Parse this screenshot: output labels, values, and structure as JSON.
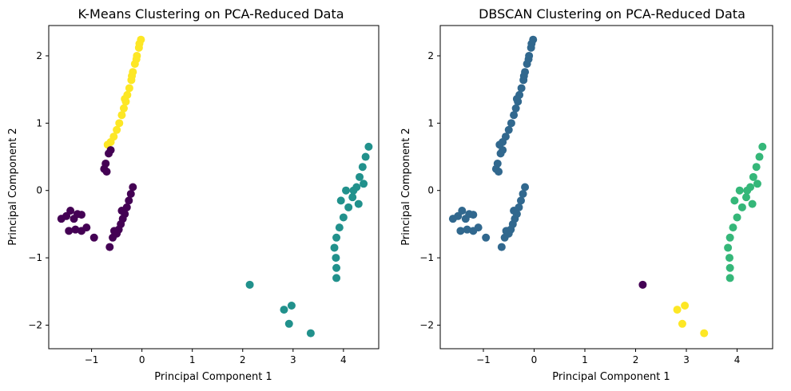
{
  "chart_data": [
    {
      "type": "scatter",
      "title": "K-Means Clustering on PCA-Reduced Data",
      "xlabel": "Principal Component 1",
      "ylabel": "Principal Component 2",
      "xlim": [
        -1.85,
        4.7
      ],
      "ylim": [
        -2.35,
        2.45
      ],
      "xticks": [
        {
          "v": -1,
          "l": "−1"
        },
        {
          "v": 0,
          "l": "0"
        },
        {
          "v": 1,
          "l": "1"
        },
        {
          "v": 2,
          "l": "2"
        },
        {
          "v": 3,
          "l": "3"
        },
        {
          "v": 4,
          "l": "4"
        }
      ],
      "yticks": [
        {
          "v": -2,
          "l": "−2"
        },
        {
          "v": -1,
          "l": "−1"
        },
        {
          "v": 0,
          "l": "0"
        },
        {
          "v": 1,
          "l": "1"
        },
        {
          "v": 2,
          "l": "2"
        }
      ],
      "grid": false,
      "series": [
        {
          "color": "#fde725",
          "points": [
            [
              -0.02,
              2.24
            ],
            [
              -0.06,
              2.12
            ],
            [
              -0.1,
              2.0
            ],
            [
              -0.14,
              1.88
            ],
            [
              -0.18,
              1.76
            ],
            [
              -0.21,
              1.64
            ],
            [
              -0.25,
              1.52
            ],
            [
              -0.29,
              1.42
            ],
            [
              -0.32,
              1.32
            ],
            [
              -0.36,
              1.22
            ],
            [
              -0.4,
              1.12
            ],
            [
              -0.45,
              1.0
            ],
            [
              -0.5,
              0.9
            ],
            [
              -0.56,
              0.8
            ],
            [
              -0.62,
              0.72
            ],
            [
              -0.68,
              0.68
            ],
            [
              -0.05,
              2.18
            ],
            [
              -0.11,
              1.95
            ],
            [
              -0.2,
              1.7
            ],
            [
              -0.34,
              1.36
            ]
          ]
        },
        {
          "color": "#440154",
          "points": [
            [
              -0.62,
              0.6
            ],
            [
              -0.66,
              0.55
            ],
            [
              -0.72,
              0.4
            ],
            [
              -0.75,
              0.32
            ],
            [
              -0.7,
              0.28
            ],
            [
              -0.18,
              0.05
            ],
            [
              -0.22,
              -0.05
            ],
            [
              -0.26,
              -0.15
            ],
            [
              -0.3,
              -0.25
            ],
            [
              -0.34,
              -0.35
            ],
            [
              -0.38,
              -0.42
            ],
            [
              -0.42,
              -0.5
            ],
            [
              -0.46,
              -0.58
            ],
            [
              -0.5,
              -0.64
            ],
            [
              -0.55,
              -0.6
            ],
            [
              -0.58,
              -0.7
            ],
            [
              -0.64,
              -0.84
            ],
            [
              -0.4,
              -0.3
            ],
            [
              -1.6,
              -0.42
            ],
            [
              -1.5,
              -0.38
            ],
            [
              -1.42,
              -0.3
            ],
            [
              -1.35,
              -0.42
            ],
            [
              -1.28,
              -0.35
            ],
            [
              -1.2,
              -0.36
            ],
            [
              -1.45,
              -0.6
            ],
            [
              -1.32,
              -0.58
            ],
            [
              -1.2,
              -0.6
            ],
            [
              -1.1,
              -0.55
            ],
            [
              -0.95,
              -0.7
            ]
          ]
        },
        {
          "color": "#21918c",
          "points": [
            [
              4.5,
              0.65
            ],
            [
              4.44,
              0.5
            ],
            [
              4.38,
              0.35
            ],
            [
              4.32,
              0.2
            ],
            [
              4.26,
              0.05
            ],
            [
              4.18,
              -0.1
            ],
            [
              4.1,
              -0.25
            ],
            [
              4.0,
              -0.4
            ],
            [
              3.92,
              -0.55
            ],
            [
              3.86,
              -0.7
            ],
            [
              3.82,
              -0.85
            ],
            [
              3.85,
              -1.0
            ],
            [
              3.86,
              -1.15
            ],
            [
              3.86,
              -1.3
            ],
            [
              4.2,
              0.0
            ],
            [
              4.05,
              0.0
            ],
            [
              3.95,
              -0.15
            ],
            [
              4.3,
              -0.2
            ],
            [
              4.4,
              0.1
            ],
            [
              2.14,
              -1.4
            ],
            [
              2.82,
              -1.77
            ],
            [
              2.97,
              -1.71
            ],
            [
              2.92,
              -1.98
            ],
            [
              3.35,
              -2.12
            ]
          ]
        }
      ]
    },
    {
      "type": "scatter",
      "title": "DBSCAN Clustering on PCA-Reduced Data",
      "xlabel": "Principal Component 1",
      "ylabel": "Principal Component 2",
      "xlim": [
        -1.85,
        4.7
      ],
      "ylim": [
        -2.35,
        2.45
      ],
      "xticks": [
        {
          "v": -1,
          "l": "−1"
        },
        {
          "v": 0,
          "l": "0"
        },
        {
          "v": 1,
          "l": "1"
        },
        {
          "v": 2,
          "l": "2"
        },
        {
          "v": 3,
          "l": "3"
        },
        {
          "v": 4,
          "l": "4"
        }
      ],
      "yticks": [
        {
          "v": -2,
          "l": "−2"
        },
        {
          "v": -1,
          "l": "−1"
        },
        {
          "v": 0,
          "l": "0"
        },
        {
          "v": 1,
          "l": "1"
        },
        {
          "v": 2,
          "l": "2"
        }
      ],
      "grid": false,
      "series": [
        {
          "color": "#31688e",
          "points": [
            [
              -0.02,
              2.24
            ],
            [
              -0.06,
              2.12
            ],
            [
              -0.1,
              2.0
            ],
            [
              -0.14,
              1.88
            ],
            [
              -0.18,
              1.76
            ],
            [
              -0.21,
              1.64
            ],
            [
              -0.25,
              1.52
            ],
            [
              -0.29,
              1.42
            ],
            [
              -0.32,
              1.32
            ],
            [
              -0.36,
              1.22
            ],
            [
              -0.4,
              1.12
            ],
            [
              -0.45,
              1.0
            ],
            [
              -0.5,
              0.9
            ],
            [
              -0.56,
              0.8
            ],
            [
              -0.62,
              0.72
            ],
            [
              -0.68,
              0.68
            ],
            [
              -0.05,
              2.18
            ],
            [
              -0.11,
              1.95
            ],
            [
              -0.2,
              1.7
            ],
            [
              -0.34,
              1.36
            ],
            [
              -0.62,
              0.6
            ],
            [
              -0.66,
              0.55
            ],
            [
              -0.72,
              0.4
            ],
            [
              -0.75,
              0.32
            ],
            [
              -0.7,
              0.28
            ],
            [
              -0.18,
              0.05
            ],
            [
              -0.22,
              -0.05
            ],
            [
              -0.26,
              -0.15
            ],
            [
              -0.3,
              -0.25
            ],
            [
              -0.34,
              -0.35
            ],
            [
              -0.38,
              -0.42
            ],
            [
              -0.42,
              -0.5
            ],
            [
              -0.46,
              -0.58
            ],
            [
              -0.5,
              -0.64
            ],
            [
              -0.55,
              -0.6
            ],
            [
              -0.58,
              -0.7
            ],
            [
              -0.64,
              -0.84
            ],
            [
              -0.4,
              -0.3
            ],
            [
              -1.6,
              -0.42
            ],
            [
              -1.5,
              -0.38
            ],
            [
              -1.42,
              -0.3
            ],
            [
              -1.35,
              -0.42
            ],
            [
              -1.28,
              -0.35
            ],
            [
              -1.2,
              -0.36
            ],
            [
              -1.45,
              -0.6
            ],
            [
              -1.32,
              -0.58
            ],
            [
              -1.2,
              -0.6
            ],
            [
              -1.1,
              -0.55
            ],
            [
              -0.95,
              -0.7
            ]
          ]
        },
        {
          "color": "#35b779",
          "points": [
            [
              4.5,
              0.65
            ],
            [
              4.44,
              0.5
            ],
            [
              4.38,
              0.35
            ],
            [
              4.32,
              0.2
            ],
            [
              4.26,
              0.05
            ],
            [
              4.18,
              -0.1
            ],
            [
              4.1,
              -0.25
            ],
            [
              4.0,
              -0.4
            ],
            [
              3.92,
              -0.55
            ],
            [
              3.86,
              -0.7
            ],
            [
              3.82,
              -0.85
            ],
            [
              3.85,
              -1.0
            ],
            [
              3.86,
              -1.15
            ],
            [
              3.86,
              -1.3
            ],
            [
              4.2,
              0.0
            ],
            [
              4.05,
              0.0
            ],
            [
              3.95,
              -0.15
            ],
            [
              4.3,
              -0.2
            ],
            [
              4.4,
              0.1
            ]
          ]
        },
        {
          "color": "#440154",
          "points": [
            [
              2.14,
              -1.4
            ]
          ]
        },
        {
          "color": "#fde725",
          "points": [
            [
              2.82,
              -1.77
            ],
            [
              2.97,
              -1.71
            ],
            [
              2.92,
              -1.98
            ],
            [
              3.35,
              -2.12
            ]
          ]
        }
      ]
    }
  ]
}
